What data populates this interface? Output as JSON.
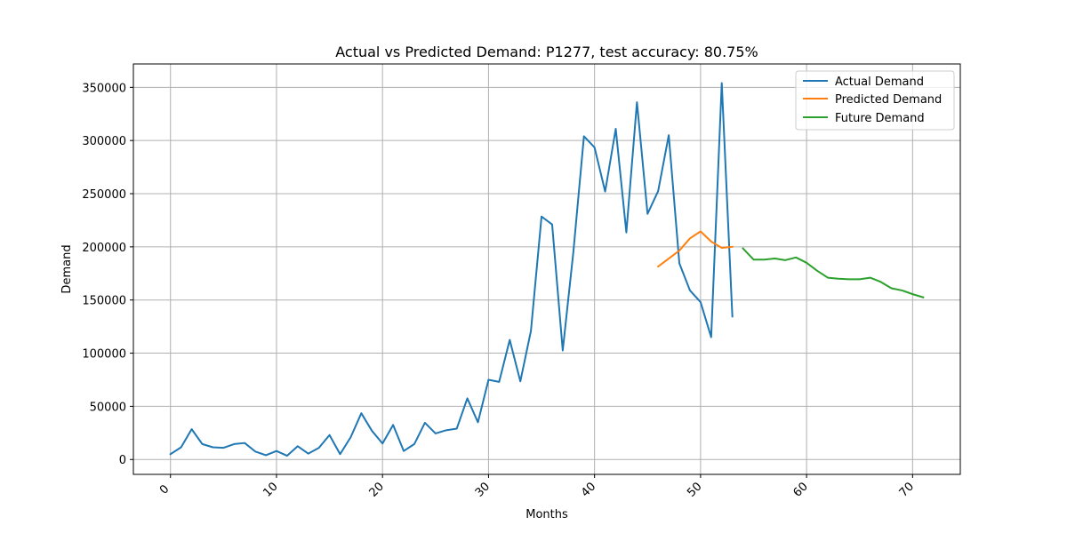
{
  "chart_data": {
    "type": "line",
    "title": "Actual vs Predicted Demand: P1277, test accuracy: 80.75%",
    "xlabel": "Months",
    "ylabel": "Demand",
    "xlim": [
      -3.5,
      74.5
    ],
    "ylim": [
      -14000,
      372000
    ],
    "xticks": [
      0,
      10,
      20,
      30,
      40,
      50,
      60,
      70
    ],
    "xtick_labels": [
      "0",
      "10",
      "20",
      "30",
      "40",
      "50",
      "60",
      "70"
    ],
    "yticks": [
      0,
      50000,
      100000,
      150000,
      200000,
      250000,
      300000,
      350000
    ],
    "ytick_labels": [
      "0",
      "50000",
      "100000",
      "150000",
      "200000",
      "250000",
      "300000",
      "350000"
    ],
    "grid": true,
    "legend_position": "upper right",
    "series": [
      {
        "name": "Actual Demand",
        "color": "#1f77b4",
        "x": [
          0,
          1,
          2,
          3,
          4,
          5,
          6,
          7,
          8,
          9,
          10,
          11,
          12,
          13,
          14,
          15,
          16,
          17,
          18,
          19,
          20,
          21,
          22,
          23,
          24,
          25,
          26,
          27,
          28,
          29,
          30,
          31,
          32,
          33,
          34,
          35,
          36,
          37,
          38,
          39,
          40,
          41,
          42,
          43,
          44,
          45,
          46,
          47,
          48,
          49,
          50,
          51,
          52,
          53
        ],
        "y": [
          5000,
          11500,
          28500,
          14500,
          11500,
          11000,
          14500,
          15500,
          7500,
          4000,
          8000,
          3500,
          12500,
          5500,
          11000,
          23000,
          5000,
          21000,
          43500,
          27000,
          15000,
          32500,
          8000,
          14500,
          34500,
          24500,
          27500,
          29000,
          57500,
          35000,
          75000,
          73000,
          112500,
          73500,
          121000,
          228500,
          221000,
          102500,
          195000,
          304000,
          293500,
          252000,
          311000,
          213500,
          336000,
          231000,
          252500,
          305000,
          184500,
          159000,
          148000,
          115000,
          354000,
          134500
        ]
      },
      {
        "name": "Predicted Demand",
        "color": "#ff7f0e",
        "x": [
          46,
          47,
          48,
          49,
          50,
          51,
          52,
          53
        ],
        "y": [
          181500,
          189000,
          196500,
          208000,
          214500,
          205000,
          199000,
          200000
        ]
      },
      {
        "name": "Future Demand",
        "color": "#2ca02c",
        "x": [
          54,
          55,
          56,
          57,
          58,
          59,
          60,
          61,
          62,
          63,
          64,
          65,
          66,
          67,
          68,
          69,
          70,
          71
        ],
        "y": [
          198500,
          188000,
          188000,
          189000,
          187500,
          190000,
          185000,
          177500,
          171000,
          170000,
          169500,
          169500,
          171000,
          167000,
          161000,
          159000,
          155500,
          152500
        ]
      }
    ]
  }
}
